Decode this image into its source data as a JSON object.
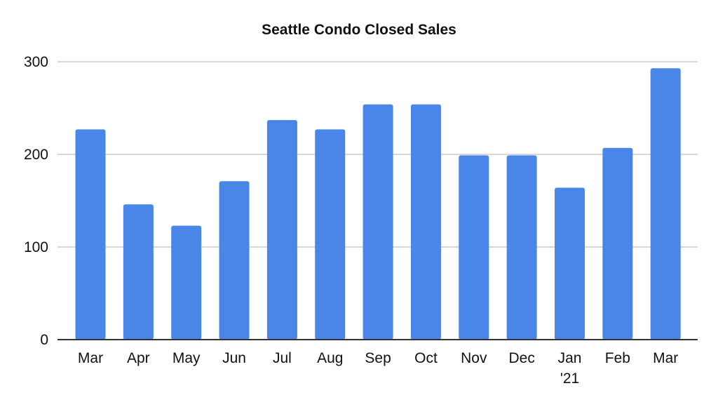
{
  "chart_data": {
    "type": "bar",
    "title": "Seattle Condo Closed Sales",
    "xlabel": "",
    "ylabel": "",
    "categories": [
      "Mar",
      "Apr",
      "May",
      "Jun",
      "Jul",
      "Aug",
      "Sep",
      "Oct",
      "Nov",
      "Dec",
      "Jan '21",
      "Feb",
      "Mar"
    ],
    "values": [
      227,
      146,
      123,
      171,
      237,
      227,
      254,
      254,
      199,
      199,
      164,
      207,
      293
    ],
    "ylim": [
      0,
      300
    ],
    "yticks": [
      0,
      100,
      200,
      300
    ],
    "grid": true,
    "legend": "none",
    "colors": {
      "bar": "#4a86e8",
      "grid": "#cccccc",
      "axis": "#333333"
    }
  }
}
